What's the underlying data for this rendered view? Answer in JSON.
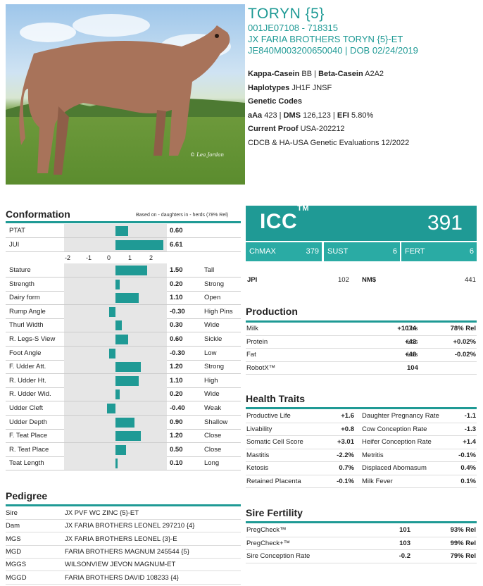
{
  "header": {
    "name": "TORYN {5}",
    "line1": "001JE07108 - 718315",
    "line2": "JX FARIA BROTHERS TORYN {5}-ET",
    "line3": "JE840M003200650040 | DOB 02/24/2019"
  },
  "photo": {
    "credit": "© Lea Jordan"
  },
  "info": {
    "kappa_label": "Kappa-Casein",
    "kappa_value": "BB",
    "beta_label": "Beta-Casein",
    "beta_value": "A2A2",
    "haplotypes_label": "Haplotypes",
    "haplotypes_value": "JH1F JNSF",
    "genetic_codes_label": "Genetic Codes",
    "aaa_label": "aAa",
    "aaa_value": "423",
    "dms_label": "DMS",
    "dms_value": "126,123",
    "efi_label": "EFI",
    "efi_value": "5.80%",
    "proof_label": "Current Proof",
    "proof_value": "USA-202212",
    "evaluation": "CDCB & HA-USA Genetic Evaluations 12/2022"
  },
  "conformation": {
    "title": "Conformation",
    "note": "Based on - daughters in - herds (78% Rel)",
    "axis": [
      "-2",
      "-1",
      "0",
      "1",
      "2"
    ],
    "top_rows": [
      {
        "label": "PTAT",
        "value": "0.60",
        "num": 0.6
      },
      {
        "label": "JUI",
        "value": "6.61",
        "num": 6.61
      }
    ],
    "rows": [
      {
        "label": "Stature",
        "value": "1.50",
        "num": 1.5,
        "desc": "Tall"
      },
      {
        "label": "Strength",
        "value": "0.20",
        "num": 0.2,
        "desc": "Strong"
      },
      {
        "label": "Dairy form",
        "value": "1.10",
        "num": 1.1,
        "desc": "Open"
      },
      {
        "label": "Rump Angle",
        "value": "-0.30",
        "num": -0.3,
        "desc": "High Pins"
      },
      {
        "label": "Thurl Width",
        "value": "0.30",
        "num": 0.3,
        "desc": "Wide"
      },
      {
        "label": "R. Legs-S View",
        "value": "0.60",
        "num": 0.6,
        "desc": "Sickle"
      },
      {
        "label": "Foot Angle",
        "value": "-0.30",
        "num": -0.3,
        "desc": "Low"
      },
      {
        "label": "F. Udder Att.",
        "value": "1.20",
        "num": 1.2,
        "desc": "Strong"
      },
      {
        "label": "R. Udder Ht.",
        "value": "1.10",
        "num": 1.1,
        "desc": "High"
      },
      {
        "label": "R. Udder Wid.",
        "value": "0.20",
        "num": 0.2,
        "desc": "Wide"
      },
      {
        "label": "Udder Cleft",
        "value": "-0.40",
        "num": -0.4,
        "desc": "Weak"
      },
      {
        "label": "Udder Depth",
        "value": "0.90",
        "num": 0.9,
        "desc": "Shallow"
      },
      {
        "label": "F. Teat Place",
        "value": "1.20",
        "num": 1.2,
        "desc": "Close"
      },
      {
        "label": "R. Teat Place",
        "value": "0.50",
        "num": 0.5,
        "desc": "Close"
      },
      {
        "label": "Teat Length",
        "value": "0.10",
        "num": 0.1,
        "desc": "Long"
      }
    ]
  },
  "pedigree": {
    "title": "Pedigree",
    "rows": [
      {
        "k": "Sire",
        "v": "JX PVF WC ZINC {5}-ET"
      },
      {
        "k": "Dam",
        "v": "JX FARIA BROTHERS LEONEL 297210 {4}"
      },
      {
        "k": "MGS",
        "v": "JX FARIA BROTHERS LEONEL {3}-E"
      },
      {
        "k": "MGD",
        "v": "FARIA BROTHERS MAGNUM 245544 {5}"
      },
      {
        "k": "MGGS",
        "v": "WILSONVIEW JEVON MAGNUM-ET"
      },
      {
        "k": "MGGD",
        "v": "FARIA BROTHERS DAVID 108233 {4}"
      }
    ]
  },
  "icc": {
    "label": "ICC",
    "tm": "TM",
    "value": "391",
    "sub": [
      {
        "k": "ChMAX",
        "v": "379"
      },
      {
        "k": "SUST",
        "v": "6"
      },
      {
        "k": "FERT",
        "v": "6"
      }
    ]
  },
  "indices": {
    "jpi_label": "JPI",
    "jpi_value": "102",
    "nm_label": "NM$",
    "nm_value": "441"
  },
  "production": {
    "title": "Production",
    "rows": [
      {
        "k": "Milk",
        "v": "+1074",
        "u": "Lbs",
        "r": "78% Rel"
      },
      {
        "k": "Protein",
        "v": "+43",
        "u": "Lbs",
        "r": "+0.02%"
      },
      {
        "k": "Fat",
        "v": "+48",
        "u": "Lbs",
        "r": "-0.02%"
      },
      {
        "k": "RobotX™",
        "v": "104",
        "u": "",
        "r": ""
      }
    ]
  },
  "health": {
    "title": "Health Traits",
    "rows": [
      {
        "k1": "Productive Life",
        "v1": "+1.6",
        "k2": "Daughter Pregnancy Rate",
        "v2": "-1.1"
      },
      {
        "k1": "Livability",
        "v1": "+0.8",
        "k2": "Cow Conception Rate",
        "v2": "-1.3"
      },
      {
        "k1": "Somatic Cell Score",
        "v1": "+3.01",
        "k2": "Heifer Conception Rate",
        "v2": "+1.4"
      },
      {
        "k1": "Mastitis",
        "v1": "-2.2%",
        "k2": "Metritis",
        "v2": "-0.1%"
      },
      {
        "k1": "Ketosis",
        "v1": "0.7%",
        "k2": "Displaced Abomasum",
        "v2": "0.4%"
      },
      {
        "k1": "Retained Placenta",
        "v1": "-0.1%",
        "k2": "Milk Fever",
        "v2": "0.1%"
      }
    ]
  },
  "fertility": {
    "title": "Sire Fertility",
    "rows": [
      {
        "k": "PregCheck™",
        "v": "101",
        "r": "93% Rel"
      },
      {
        "k": "PregCheck+™",
        "v": "103",
        "r": "99% Rel"
      },
      {
        "k": "Sire Conception Rate",
        "v": "-0.2",
        "r": "79% Rel"
      }
    ]
  },
  "colors": {
    "accent": "#1f9a95",
    "accent_light": "#2aaba4"
  }
}
